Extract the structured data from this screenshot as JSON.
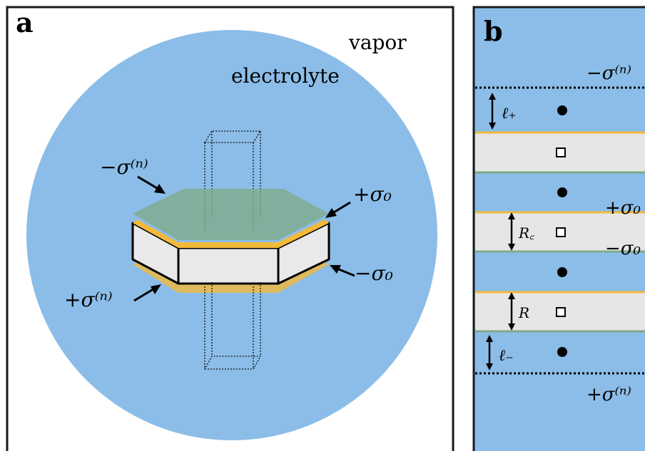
{
  "panel_a": {
    "letter": "a",
    "vapor": "vapor",
    "electrolyte": "electrolyte",
    "minus_sigma_n": "−σ⁽ⁿ⁾",
    "plus_sigma_0": "+σ₀",
    "minus_sigma_0": "−σ₀",
    "plus_sigma_n": "+σ⁽ⁿ⁾"
  },
  "panel_b": {
    "letter": "b",
    "top_charge": "−σ⁽ⁿ⁾",
    "l_plus": "ℓ₊",
    "plus_sigma_0": "+σ₀",
    "r_c": "R꜀",
    "minus_sigma_0": "−σ₀",
    "r": "R",
    "l_minus": "ℓ₋",
    "bottom_charge": "+σ⁽ⁿ⁾"
  },
  "colors": {
    "electrolyte": "#8bbde8",
    "yellow_layer": "#f2b93b",
    "green_layer": "#7faa8a",
    "slab": "#e6e6e6",
    "frame": "#1a1a1a"
  }
}
